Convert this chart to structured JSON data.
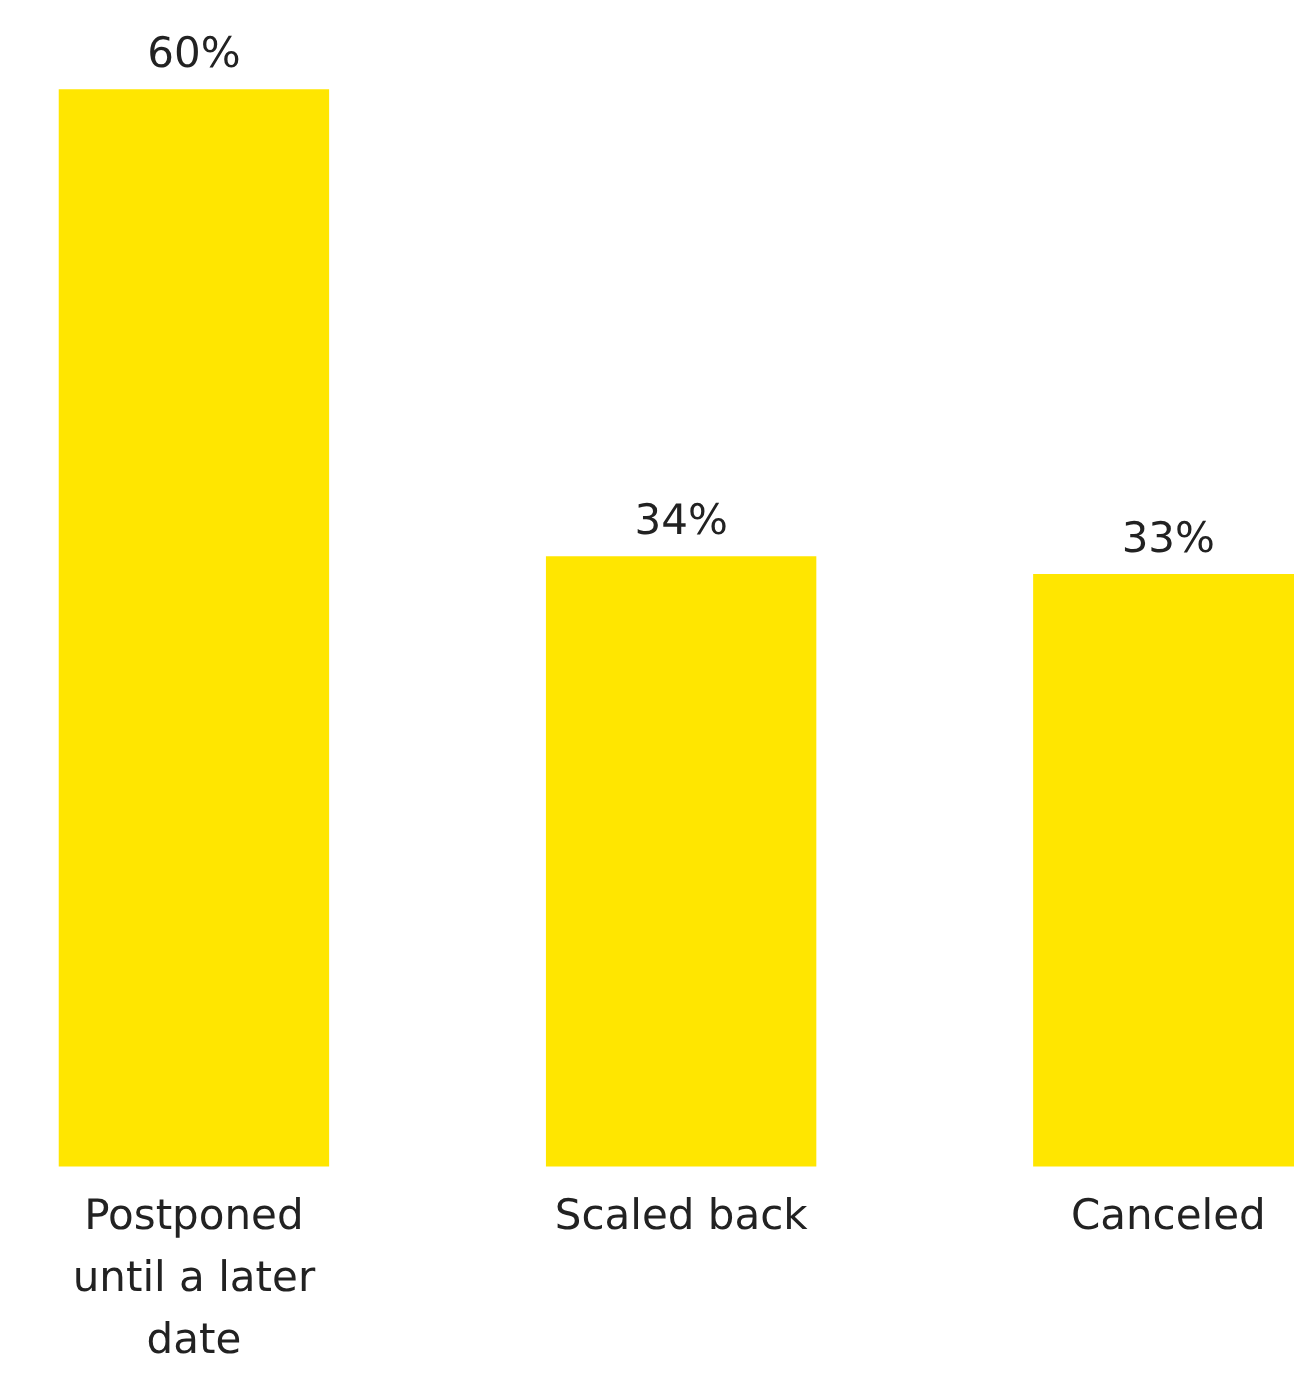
{
  "chart_data": {
    "type": "bar",
    "categories": [
      "Postponed until a later date",
      "Scaled back",
      "Canceled"
    ],
    "values": [
      60,
      34,
      33
    ],
    "value_labels": [
      "60%",
      "34%",
      "33%"
    ],
    "color": "#ffe600"
  }
}
